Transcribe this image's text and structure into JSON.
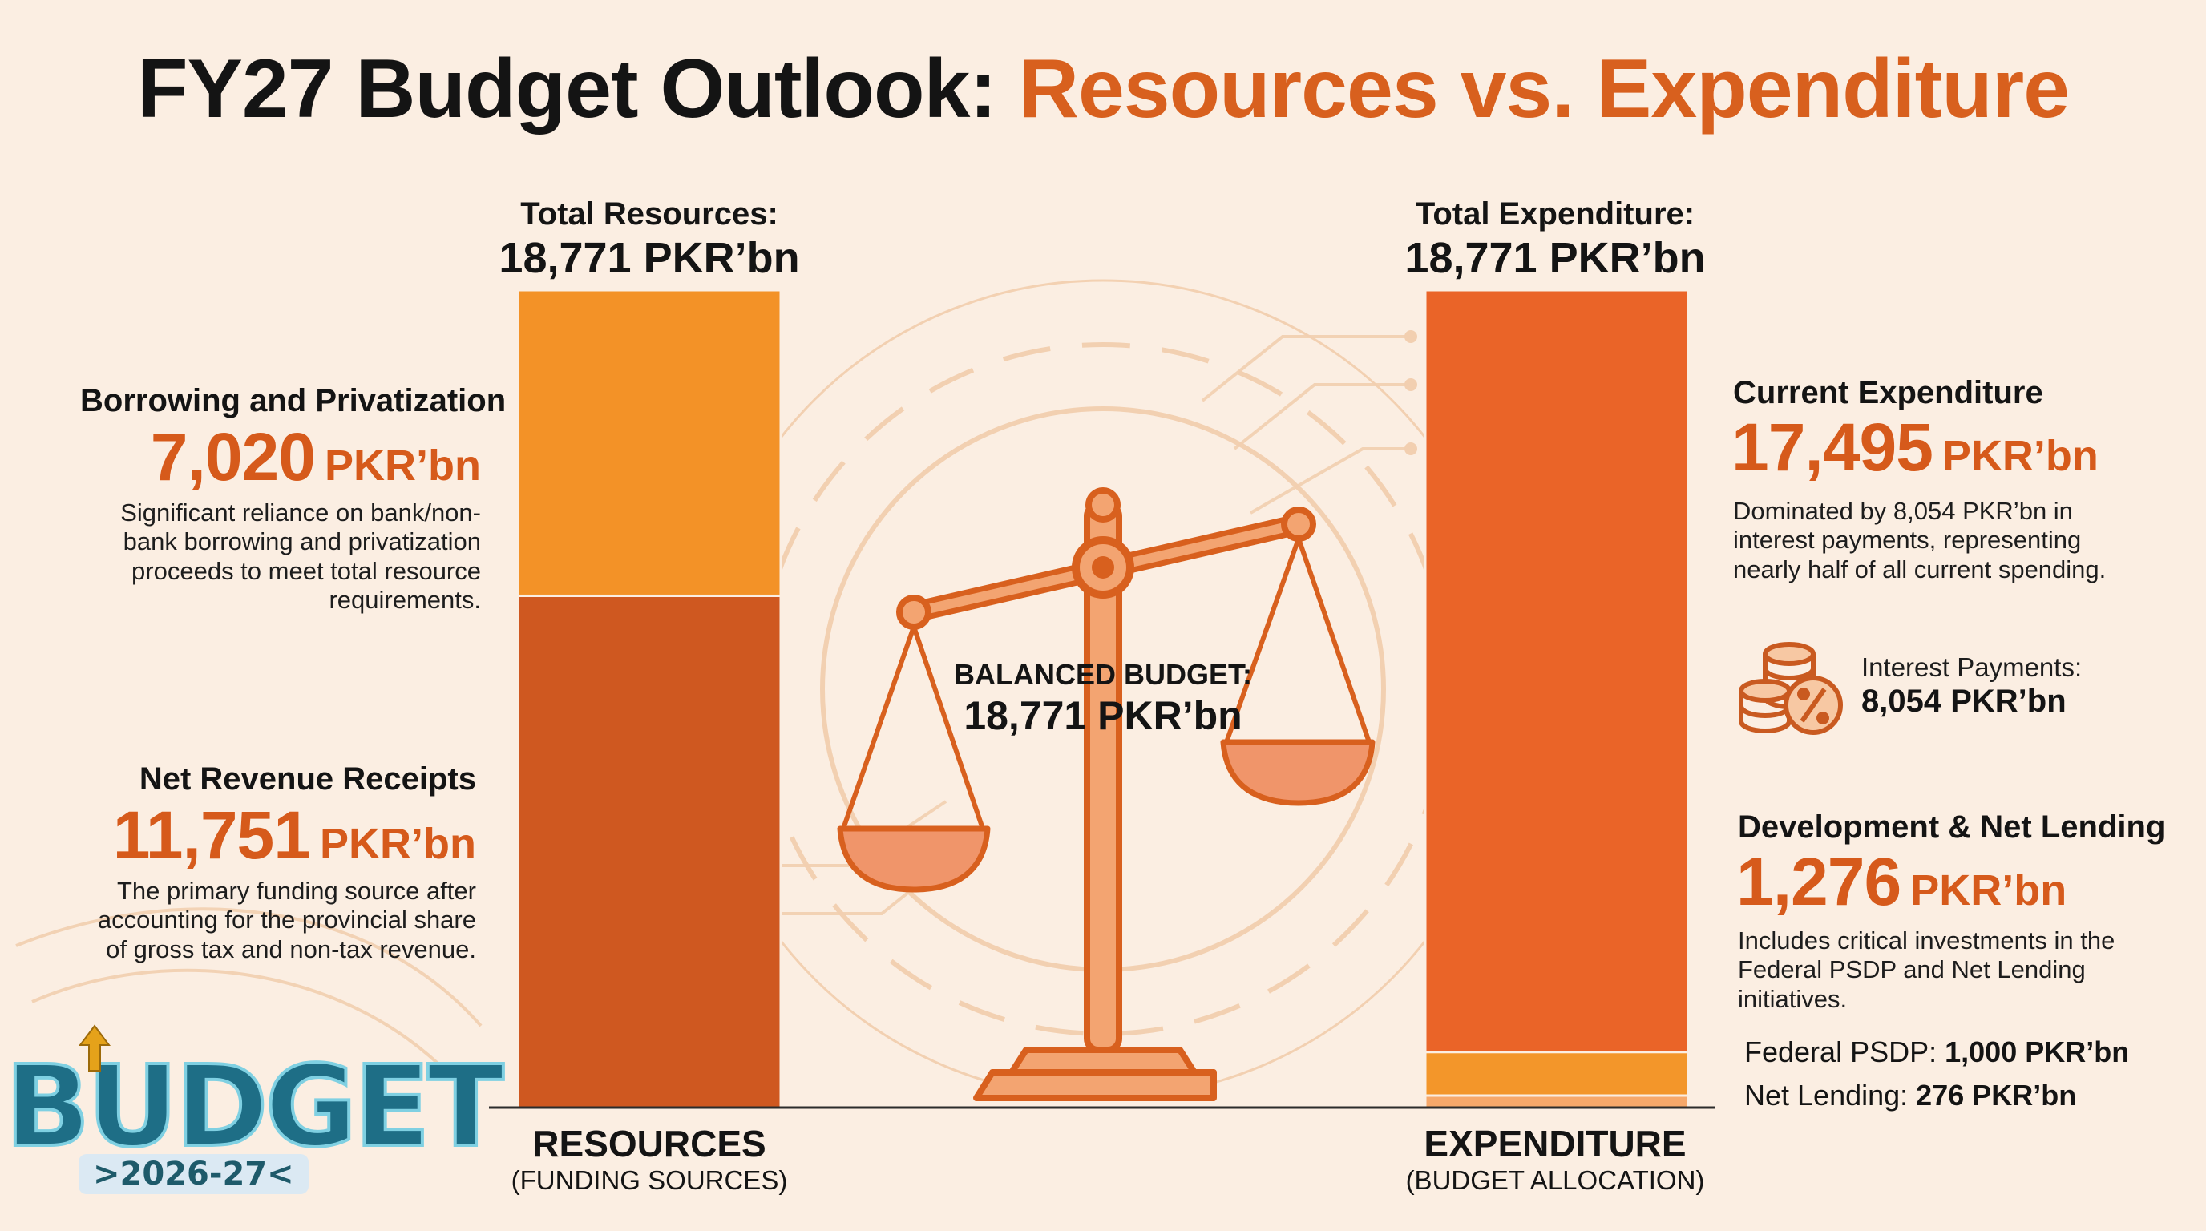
{
  "title": {
    "main": "FY27 Budget Outlook:",
    "accent": "Resources vs. Expenditure"
  },
  "resources": {
    "header_label": "Total Resources:",
    "header_value": "18,771 PKR’bn",
    "footer_title": "RESOURCES",
    "footer_sub": "(FUNDING SOURCES)",
    "borrowing": {
      "title": "Borrowing and Privatization",
      "number": "7,020",
      "unit": "PKR’bn",
      "desc": "Significant reliance on bank/non-bank borrowing and privatization proceeds to meet total resource requirements."
    },
    "revenue": {
      "title": "Net Revenue Receipts",
      "number": "11,751",
      "unit": "PKR’bn",
      "desc": "The primary funding source after accounting for the provincial share of gross tax and non-tax revenue."
    }
  },
  "expenditure": {
    "header_label": "Total Expenditure:",
    "header_value": "18,771 PKR’bn",
    "footer_title": "EXPENDITURE",
    "footer_sub": "(BUDGET ALLOCATION)",
    "current": {
      "title": "Current Expenditure",
      "number": "17,495",
      "unit": "PKR’bn",
      "desc": "Dominated by 8,054 PKR’bn in interest payments, representing nearly half of all current spending."
    },
    "interest": {
      "label": "Interest Payments:",
      "value": "8,054 PKR’bn"
    },
    "development": {
      "title": "Development & Net Lending",
      "number": "1,276",
      "unit": "PKR’bn",
      "desc": "Includes critical investments in the Federal PSDP and Net Lending initiatives."
    },
    "psdp": {
      "label": "Federal PSDP:",
      "value": "1,000 PKR’bn"
    },
    "net_lending": {
      "label": "Net Lending:",
      "value": "276 PKR’bn"
    }
  },
  "balanced": {
    "line1": "BALANCED BUDGET:",
    "line2": "18,771 PKR’bn"
  },
  "logo": {
    "word": "BUDGET",
    "year": ">2026-27<"
  },
  "colors": {
    "background": "#fbeee2",
    "accent_text": "#d8601e",
    "borrowing": "#f39227",
    "revenue": "#cf5820",
    "current": "#ea6428",
    "psdp": "#f3962a",
    "net_lending": "#f6a86a"
  },
  "chart_data": {
    "type": "bar",
    "stacked": true,
    "categories": [
      "RESOURCES",
      "EXPENDITURE"
    ],
    "ylim": [
      0,
      18771
    ],
    "series": [
      {
        "name": "Net Revenue Receipts",
        "values": [
          11751,
          0
        ]
      },
      {
        "name": "Borrowing and Privatization",
        "values": [
          7020,
          0
        ]
      },
      {
        "name": "Net Lending",
        "values": [
          0,
          276
        ]
      },
      {
        "name": "Federal PSDP",
        "values": [
          0,
          1000
        ]
      },
      {
        "name": "Current Expenditure",
        "values": [
          0,
          17495
        ]
      }
    ]
  }
}
